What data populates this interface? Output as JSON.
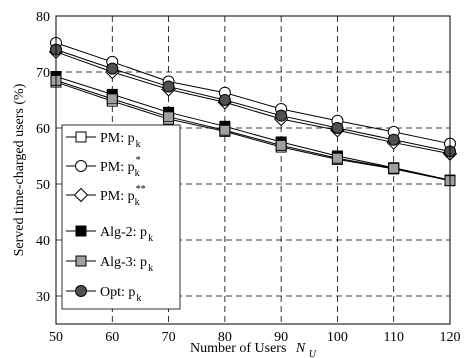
{
  "chart_data": {
    "type": "line",
    "xlabel": "Number of Users",
    "xlabel_symbol": "N",
    "xlabel_subscript": "U",
    "ylabel": "Served time-charged users (%)",
    "xlim": [
      50,
      120
    ],
    "ylim": [
      25,
      80
    ],
    "xticks": [
      50,
      60,
      70,
      80,
      90,
      100,
      110,
      120
    ],
    "yticks": [
      30,
      40,
      50,
      60,
      70,
      80
    ],
    "grid": true,
    "legend_position": "left-bottom",
    "x": [
      50,
      60,
      70,
      80,
      90,
      100,
      110,
      120
    ],
    "series": [
      {
        "name": "PM: p",
        "sub": "k",
        "sup": "",
        "marker": "square-open",
        "fill": "#ffffff",
        "values": [
          68.2,
          64.8,
          61.6,
          59.4,
          56.6,
          54.4,
          52.7,
          50.6
        ]
      },
      {
        "name": "PM: p",
        "sub": "k",
        "sup": "*",
        "marker": "circle-open",
        "fill": "#ffffff",
        "values": [
          75.2,
          71.8,
          68.3,
          66.3,
          63.4,
          61.3,
          59.3,
          57.2
        ]
      },
      {
        "name": "PM: p",
        "sub": "k",
        "sup": "**",
        "marker": "diamond-open",
        "fill": "#ffffff",
        "values": [
          73.6,
          70.0,
          66.9,
          64.6,
          61.6,
          59.6,
          57.4,
          55.4
        ]
      },
      {
        "name": "Alg-2: p",
        "sub": "k",
        "sup": "",
        "marker": "square-filled",
        "fill": "#000000",
        "values": [
          69.2,
          66.0,
          62.8,
          60.3,
          57.5,
          55.0,
          52.9,
          50.7
        ]
      },
      {
        "name": "Alg-3: p",
        "sub": "k",
        "sup": "",
        "marker": "square-gray",
        "fill": "#a0a0a0",
        "values": [
          68.5,
          65.2,
          62.0,
          59.6,
          56.9,
          54.6,
          52.8,
          50.6
        ]
      },
      {
        "name": "Opt: p",
        "sub": "k",
        "sup": "",
        "marker": "circle-dark",
        "fill": "#505050",
        "values": [
          74.0,
          70.6,
          67.4,
          65.0,
          62.2,
          60.0,
          57.9,
          55.8
        ]
      }
    ]
  }
}
